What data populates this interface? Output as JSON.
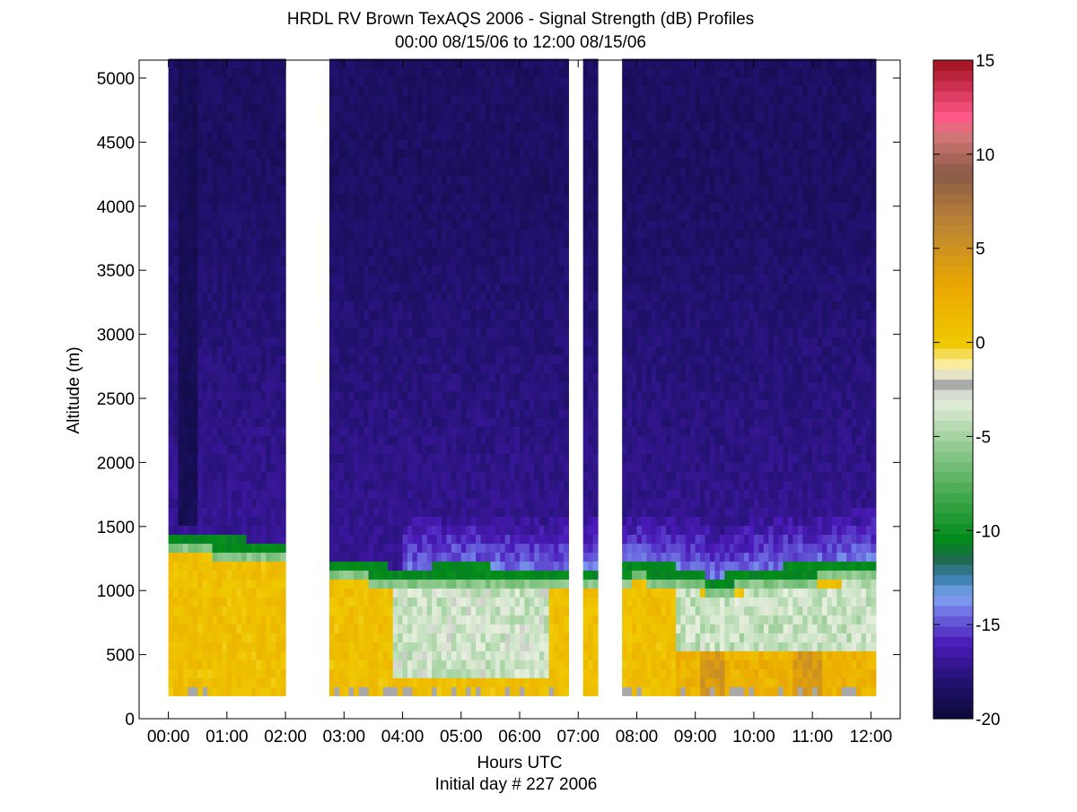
{
  "chart_data": {
    "type": "heatmap",
    "title": "HRDL RV Brown TexAQS 2006 - Signal Strength (dB) Profiles",
    "subtitle": "00:00 08/15/06 to 12:00 08/15/06",
    "xlabel": "Hours UTC",
    "xlabel2": "Initial day # 227  2006",
    "ylabel": "Altitude (m)",
    "xlim": [
      -0.5,
      12.5
    ],
    "ylim": [
      0,
      5140
    ],
    "x_ticks": [
      0,
      1,
      2,
      3,
      4,
      5,
      6,
      7,
      8,
      9,
      10,
      11,
      12
    ],
    "x_tick_labels": [
      "00:00",
      "01:00",
      "02:00",
      "03:00",
      "04:00",
      "05:00",
      "06:00",
      "07:00",
      "08:00",
      "09:00",
      "10:00",
      "11:00",
      "12:00"
    ],
    "y_ticks": [
      0,
      500,
      1000,
      1500,
      2000,
      2500,
      3000,
      3500,
      4000,
      4500,
      5000
    ],
    "y_tick_labels": [
      "0",
      "500",
      "1000",
      "1500",
      "2000",
      "2500",
      "3000",
      "3500",
      "4000",
      "4500",
      "5000"
    ],
    "altitude_range_m": [
      180,
      5130
    ],
    "data_gaps_hours": [
      [
        2.0,
        2.75
      ],
      [
        6.85,
        7.05
      ],
      [
        7.3,
        7.75
      ]
    ],
    "profiles": [
      {
        "hour": 0.0,
        "bl_top_m": 1380
      },
      {
        "hour": 1.0,
        "bl_top_m": 1360
      },
      {
        "hour": 2.0,
        "bl_top_m": 1310
      },
      {
        "hour": 2.75,
        "bl_top_m": 1200
      },
      {
        "hour": 3.5,
        "bl_top_m": 1150
      },
      {
        "hour": 4.0,
        "bl_top_m": 1120
      },
      {
        "hour": 5.0,
        "bl_top_m": 1150
      },
      {
        "hour": 6.0,
        "bl_top_m": 1120
      },
      {
        "hour": 7.0,
        "bl_top_m": 1110
      },
      {
        "hour": 8.0,
        "bl_top_m": 1160
      },
      {
        "hour": 9.0,
        "bl_top_m": 1120
      },
      {
        "hour": 9.3,
        "bl_top_m": 1040
      },
      {
        "hour": 10.0,
        "bl_top_m": 1120
      },
      {
        "hour": 11.0,
        "bl_top_m": 1150
      },
      {
        "hour": 12.0,
        "bl_top_m": 1200
      }
    ],
    "colorbar": {
      "min": -20,
      "max": 15,
      "ticks": [
        -20,
        -15,
        -10,
        -5,
        0,
        5,
        10,
        15
      ],
      "tick_labels": [
        "-20",
        "-15",
        "-10",
        "-5",
        "0",
        "5",
        "10",
        "15"
      ],
      "stops": [
        {
          "v": -20,
          "c": "#0c0a3a"
        },
        {
          "v": -18,
          "c": "#221270"
        },
        {
          "v": -16,
          "c": "#4a1ab8"
        },
        {
          "v": -14.5,
          "c": "#6b68e0"
        },
        {
          "v": -13.5,
          "c": "#7ea4f0"
        },
        {
          "v": -12.5,
          "c": "#3a7fb0"
        },
        {
          "v": -11.5,
          "c": "#1e6b4c"
        },
        {
          "v": -10.5,
          "c": "#008a18"
        },
        {
          "v": -8,
          "c": "#46aa50"
        },
        {
          "v": -5,
          "c": "#a4d2a0"
        },
        {
          "v": -3,
          "c": "#e8f0e0"
        },
        {
          "v": -2.2,
          "c": "#a8a8a8"
        },
        {
          "v": -1.5,
          "c": "#fcf8d0"
        },
        {
          "v": 0,
          "c": "#f0c800"
        },
        {
          "v": 3,
          "c": "#eaa800"
        },
        {
          "v": 6,
          "c": "#c08830"
        },
        {
          "v": 9,
          "c": "#8a5a48"
        },
        {
          "v": 11,
          "c": "#d47878"
        },
        {
          "v": 12,
          "c": "#ff5888"
        },
        {
          "v": 15,
          "c": "#a01020"
        }
      ]
    }
  }
}
